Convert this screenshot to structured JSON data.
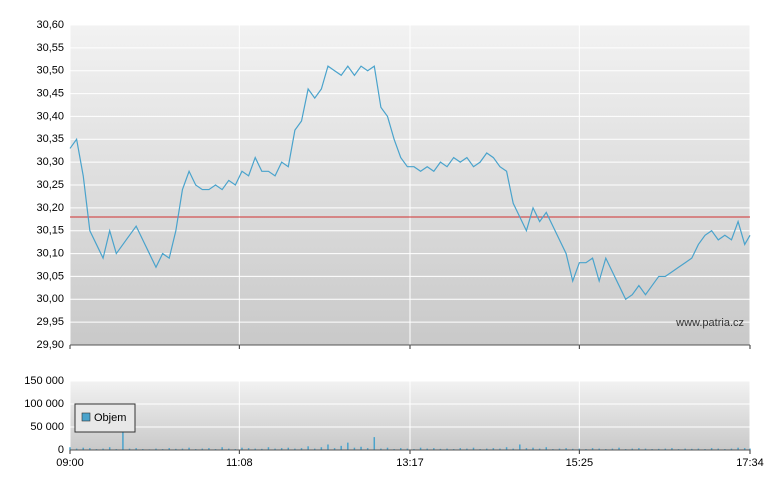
{
  "chart_data": [
    {
      "type": "line",
      "x": [
        "09:00",
        "09:05",
        "09:10",
        "09:15",
        "09:20",
        "09:25",
        "09:30",
        "09:35",
        "09:40",
        "09:45",
        "09:50",
        "09:55",
        "10:00",
        "10:05",
        "10:10",
        "10:15",
        "10:20",
        "10:25",
        "10:30",
        "10:35",
        "10:40",
        "10:45",
        "10:50",
        "10:55",
        "11:00",
        "11:05",
        "11:10",
        "11:15",
        "11:20",
        "11:25",
        "11:30",
        "11:35",
        "11:40",
        "11:45",
        "11:50",
        "11:55",
        "12:00",
        "12:05",
        "12:10",
        "12:15",
        "12:20",
        "12:25",
        "12:30",
        "12:35",
        "12:40",
        "12:45",
        "12:50",
        "12:55",
        "13:00",
        "13:05",
        "13:10",
        "13:15",
        "13:20",
        "13:25",
        "13:30",
        "13:35",
        "13:40",
        "13:45",
        "13:50",
        "13:55",
        "14:00",
        "14:05",
        "14:10",
        "14:15",
        "14:20",
        "14:25",
        "14:30",
        "14:35",
        "14:40",
        "14:45",
        "14:50",
        "14:55",
        "15:00",
        "15:05",
        "15:10",
        "15:15",
        "15:20",
        "15:25",
        "15:30",
        "15:35",
        "15:40",
        "15:45",
        "15:50",
        "15:55",
        "16:00",
        "16:05",
        "16:10",
        "16:15",
        "16:20",
        "16:25",
        "16:30",
        "16:35",
        "16:40",
        "16:45",
        "16:50",
        "16:55",
        "17:00",
        "17:05",
        "17:10",
        "17:15",
        "17:20",
        "17:25",
        "17:30",
        "17:34"
      ],
      "series": [
        {
          "color": "#4aa3cc",
          "values": [
            30.33,
            30.35,
            30.27,
            30.15,
            30.12,
            30.09,
            30.15,
            30.1,
            30.12,
            30.14,
            30.16,
            30.13,
            30.1,
            30.07,
            30.1,
            30.09,
            30.15,
            30.24,
            30.28,
            30.25,
            30.24,
            30.24,
            30.25,
            30.24,
            30.26,
            30.25,
            30.28,
            30.27,
            30.31,
            30.28,
            30.28,
            30.27,
            30.3,
            30.29,
            30.37,
            30.39,
            30.46,
            30.44,
            30.46,
            30.51,
            30.5,
            30.49,
            30.51,
            30.49,
            30.51,
            30.5,
            30.51,
            30.42,
            30.4,
            30.35,
            30.31,
            30.29,
            30.29,
            30.28,
            30.29,
            30.28,
            30.3,
            30.29,
            30.31,
            30.3,
            30.31,
            30.29,
            30.3,
            30.32,
            30.31,
            30.29,
            30.28,
            30.21,
            30.18,
            30.15,
            30.2,
            30.17,
            30.19,
            30.16,
            30.13,
            30.1,
            30.04,
            30.08,
            30.08,
            30.09,
            30.04,
            30.09,
            30.06,
            30.03,
            30.0,
            30.01,
            30.03,
            30.01,
            30.03,
            30.05,
            30.05,
            30.06,
            30.07,
            30.08,
            30.09,
            30.12,
            30.14,
            30.15,
            30.13,
            30.14,
            30.13,
            30.17,
            30.12,
            30.14
          ]
        }
      ],
      "reference_line": 30.18,
      "reference_color": "#d03030",
      "xlim": [
        "09:00",
        "17:34"
      ],
      "xticks": [
        "09:00",
        "11:08",
        "13:17",
        "15:25",
        "17:34"
      ],
      "ylim": [
        29.9,
        30.6
      ],
      "yticks": [
        {
          "value": 29.9,
          "label": "29,90"
        },
        {
          "value": 29.95,
          "label": "29,95"
        },
        {
          "value": 30.0,
          "label": "30,00"
        },
        {
          "value": 30.05,
          "label": "30,05"
        },
        {
          "value": 30.1,
          "label": "30,10"
        },
        {
          "value": 30.15,
          "label": "30,15"
        },
        {
          "value": 30.2,
          "label": "30,20"
        },
        {
          "value": 30.25,
          "label": "30,25"
        },
        {
          "value": 30.3,
          "label": "30,30"
        },
        {
          "value": 30.35,
          "label": "30,35"
        },
        {
          "value": 30.4,
          "label": "30,40"
        },
        {
          "value": 30.45,
          "label": "30,45"
        },
        {
          "value": 30.5,
          "label": "30,50"
        },
        {
          "value": 30.55,
          "label": "30,55"
        },
        {
          "value": 30.6,
          "label": "30,60"
        }
      ],
      "grid": true,
      "annotation": "www.patria.cz"
    },
    {
      "type": "bar",
      "x": [
        "09:00",
        "09:05",
        "09:10",
        "09:15",
        "09:20",
        "09:25",
        "09:30",
        "09:35",
        "09:40",
        "09:45",
        "09:50",
        "09:55",
        "10:00",
        "10:05",
        "10:10",
        "10:15",
        "10:20",
        "10:25",
        "10:30",
        "10:35",
        "10:40",
        "10:45",
        "10:50",
        "10:55",
        "11:00",
        "11:05",
        "11:10",
        "11:15",
        "11:20",
        "11:25",
        "11:30",
        "11:35",
        "11:40",
        "11:45",
        "11:50",
        "11:55",
        "12:00",
        "12:05",
        "12:10",
        "12:15",
        "12:20",
        "12:25",
        "12:30",
        "12:35",
        "12:40",
        "12:45",
        "12:50",
        "12:55",
        "13:00",
        "13:05",
        "13:10",
        "13:15",
        "13:20",
        "13:25",
        "13:30",
        "13:35",
        "13:40",
        "13:45",
        "13:50",
        "13:55",
        "14:00",
        "14:05",
        "14:10",
        "14:15",
        "14:20",
        "14:25",
        "14:30",
        "14:35",
        "14:40",
        "14:45",
        "14:50",
        "14:55",
        "15:00",
        "15:05",
        "15:10",
        "15:15",
        "15:20",
        "15:25",
        "15:30",
        "15:35",
        "15:40",
        "15:45",
        "15:50",
        "15:55",
        "16:00",
        "16:05",
        "16:10",
        "16:15",
        "16:20",
        "16:25",
        "16:30",
        "16:35",
        "16:40",
        "16:45",
        "16:50",
        "16:55",
        "17:00",
        "17:05",
        "17:10",
        "17:15",
        "17:20",
        "17:25",
        "17:30",
        "17:34"
      ],
      "series": [
        {
          "name": "Objem",
          "color": "#4aa3cc",
          "values": [
            6000,
            3000,
            5000,
            4000,
            2000,
            3000,
            6000,
            2000,
            100000,
            3000,
            4000,
            2000,
            1500,
            3000,
            2000,
            4000,
            2500,
            3000,
            5000,
            2000,
            3000,
            4000,
            2000,
            6000,
            3000,
            2000,
            5000,
            4000,
            3000,
            2500,
            6000,
            3000,
            4000,
            5000,
            3000,
            4000,
            8000,
            3000,
            6000,
            12000,
            4000,
            9000,
            16000,
            5000,
            7000,
            4000,
            28000,
            3000,
            5000,
            2000,
            4000,
            3000,
            2000,
            5000,
            3000,
            4000,
            2500,
            3000,
            2000,
            4000,
            3000,
            5000,
            2000,
            3000,
            4000,
            3000,
            6000,
            3000,
            12000,
            4000,
            5000,
            3000,
            6000,
            2000,
            3000,
            4000,
            2500,
            3000,
            2000,
            4000,
            3000,
            2000,
            3000,
            5000,
            2000,
            3000,
            4000,
            3000,
            2000,
            2500,
            3000,
            4000,
            2000,
            3000,
            2500,
            3000,
            2000,
            4000,
            3000,
            2000,
            3000,
            5000,
            4000,
            3000
          ]
        }
      ],
      "xlim": [
        "09:00",
        "17:34"
      ],
      "xticks": [
        "09:00",
        "11:08",
        "13:17",
        "15:25",
        "17:34"
      ],
      "ylim": [
        0,
        150000
      ],
      "yticks": [
        0,
        {
          "value": 50000,
          "label": "50 000"
        },
        {
          "value": 100000,
          "label": "100 000"
        },
        {
          "value": 150000,
          "label": "150 000"
        }
      ],
      "grid": true,
      "legend": "upper-left"
    }
  ]
}
